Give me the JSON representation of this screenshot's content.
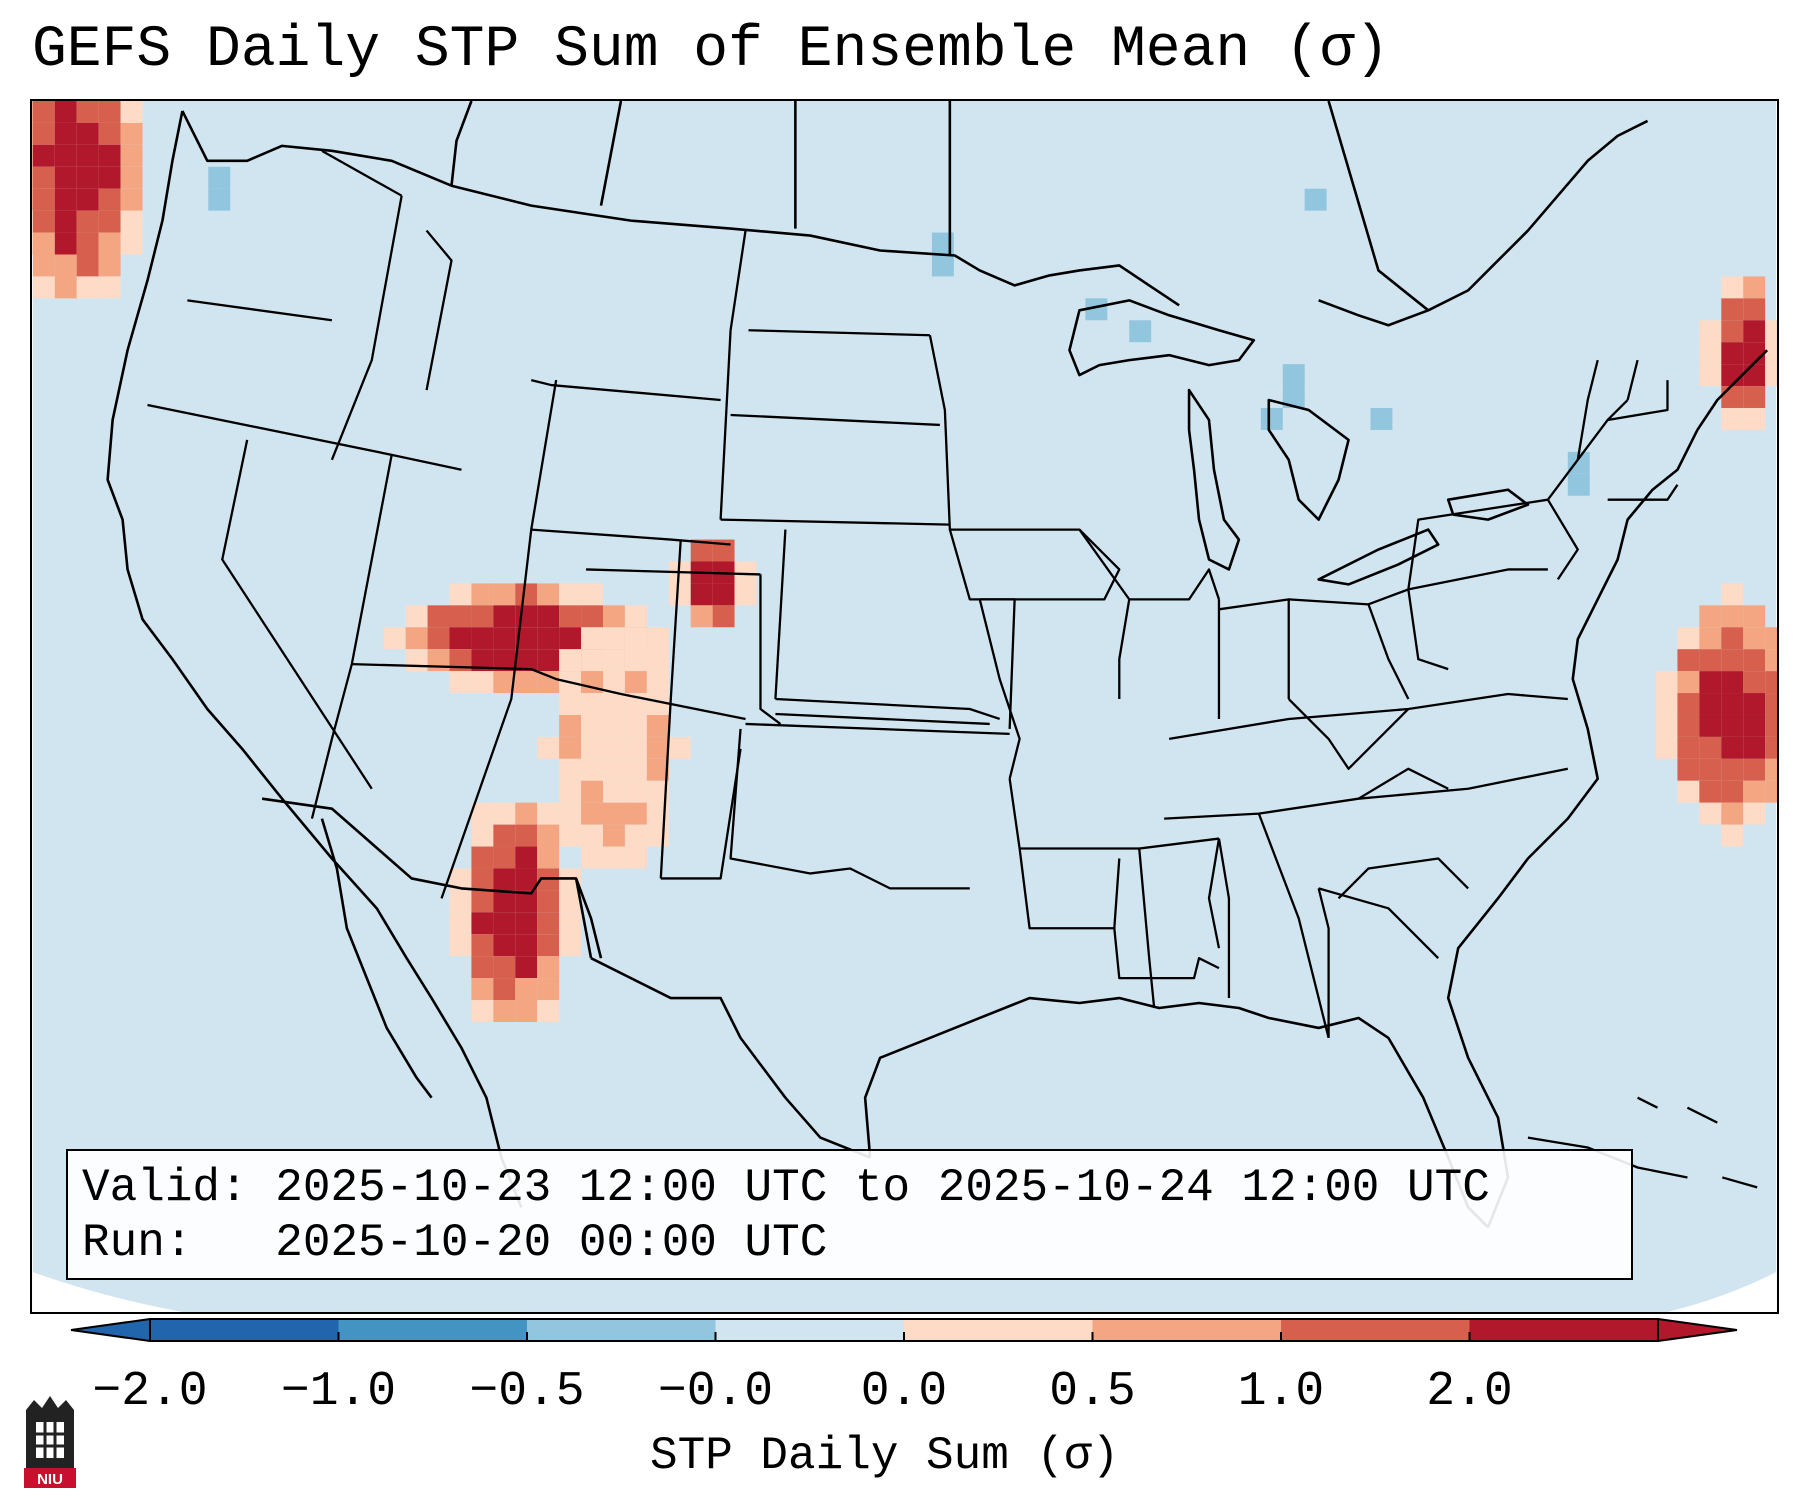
{
  "title": "GEFS Daily STP Sum of Ensemble Mean (σ)",
  "info": {
    "valid_line": "Valid: 2025-10-23 12:00 UTC to 2025-10-24 12:00 UTC",
    "run_line": "Run:   2025-10-20 00:00 UTC"
  },
  "colorbar": {
    "label": "STP Daily Sum (σ)",
    "ticks": [
      "−2.0",
      "−1.0",
      "−0.5",
      "−0.0",
      "0.0",
      "0.5",
      "1.0",
      "2.0"
    ],
    "colors": [
      "#2166ac",
      "#4393c3",
      "#92c5de",
      "#d1e5f0",
      "#fddbc7",
      "#f4a582",
      "#d6604d",
      "#b2182b"
    ]
  },
  "logo": {
    "text": "NIU"
  }
}
